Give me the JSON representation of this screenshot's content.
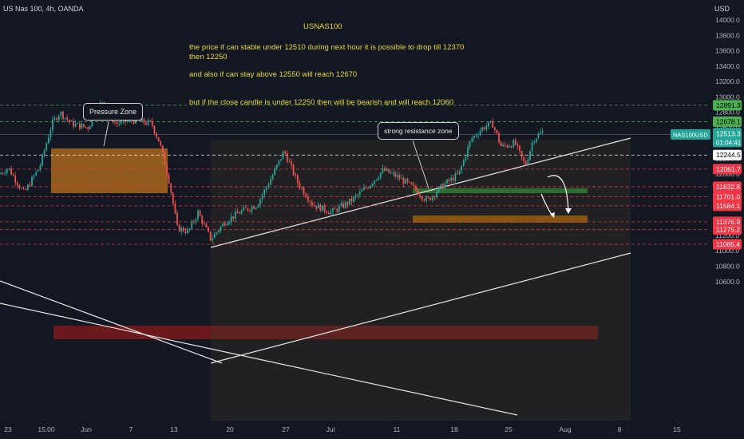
{
  "header": {
    "symbol_line": "US Nas 100, 4h, OANDA",
    "currency": "USD"
  },
  "annotations": {
    "title": "USNAS100",
    "line1": "the price if can stable under 12510 during next hour it is possible to drop till 12370 then 12250",
    "line2": "and also if can stay above 12550 will reach 12670",
    "line3": "but if the close candle is under 12250 then will be bearish and will reach 12060",
    "pressure_label": "Pressure Zone",
    "resistance_label": "strong resistance zone"
  },
  "chart_data": {
    "type": "candlestick",
    "symbol": "US Nas 100",
    "timeframe": "4h",
    "source": "OANDA",
    "y_axis_ticks": [
      10600,
      10800,
      11000,
      11200,
      11400,
      11600,
      11800,
      12000,
      12200,
      12400,
      12600,
      12800,
      13000,
      13200,
      13400,
      13600,
      13800,
      14000
    ],
    "x_axis_ticks": [
      "23",
      "15:00",
      "Jun",
      "7",
      "13",
      "20",
      "27",
      "Jul",
      "11",
      "18",
      "25",
      "Aug",
      "8",
      "15"
    ],
    "price_levels": [
      {
        "label": "12891.3",
        "value": 12891.3,
        "color": "#4caf50",
        "text_color": "#000000",
        "line": "dashed"
      },
      {
        "label": "12678.1",
        "value": 12678.1,
        "color": "#4caf50",
        "text_color": "#000000",
        "line": "dashed"
      },
      {
        "label": "12244.5",
        "value": 12244.5,
        "color": "#ffffff",
        "text_color": "#000000",
        "line": "dashed"
      },
      {
        "label": "12061.7",
        "value": 12061.7,
        "color": "#f23645",
        "text_color": "#ffffff",
        "line": "dashed"
      },
      {
        "label": "11832.8",
        "value": 11832.8,
        "color": "#f23645",
        "text_color": "#ffffff",
        "line": "dashed"
      },
      {
        "label": "11701.0",
        "value": 11701.0,
        "color": "#f23645",
        "text_color": "#ffffff",
        "line": "dashed"
      },
      {
        "label": "11584.1",
        "value": 11584.1,
        "color": "#f23645",
        "text_color": "#ffffff",
        "line": "dashed"
      },
      {
        "label": "11376.9",
        "value": 11376.9,
        "color": "#f23645",
        "text_color": "#ffffff",
        "line": "dashed"
      },
      {
        "label": "11275.2",
        "value": 11275.2,
        "color": "#f23645",
        "text_color": "#ffffff",
        "line": "dashed"
      },
      {
        "label": "11085.4",
        "value": 11085.4,
        "color": "#f23645",
        "text_color": "#ffffff",
        "line": "dashed"
      }
    ],
    "current_price": {
      "symbol": "NAS100USD",
      "price": "12513.3",
      "countdown": "01:04:41",
      "value": 12513.3,
      "color": "#26a69a"
    },
    "colors": {
      "up": "#26a69a",
      "down": "#ef5350",
      "background": "#131722",
      "axis_text": "#b2b5be"
    }
  }
}
